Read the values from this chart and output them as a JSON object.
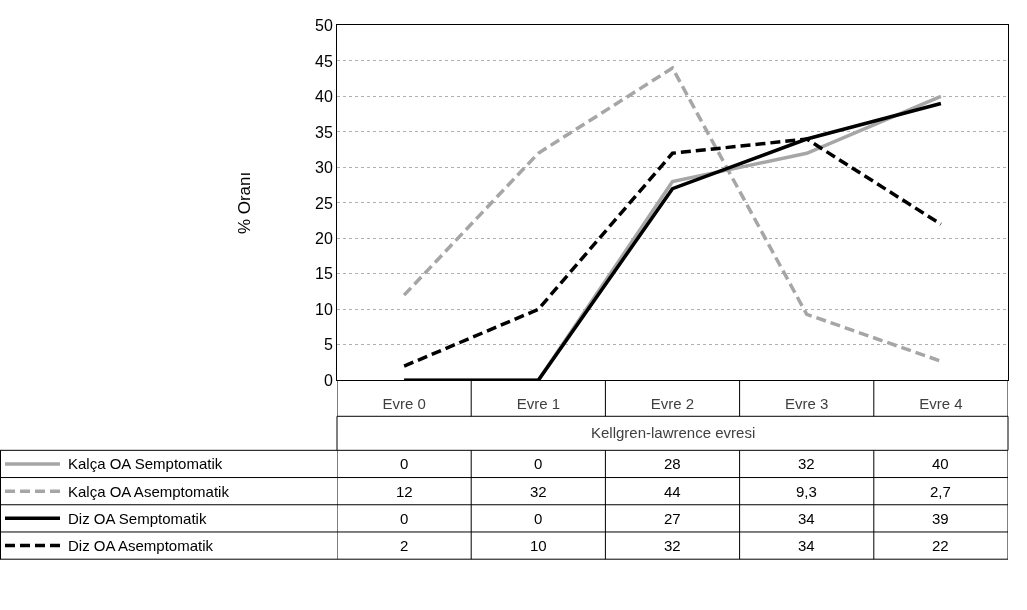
{
  "chart_data": {
    "type": "line",
    "xlabel": "Kellgren-lawrence evresi",
    "ylabel": "% Oranı",
    "categories": [
      "Evre 0",
      "Evre 1",
      "Evre 2",
      "Evre 3",
      "Evre 4"
    ],
    "series": [
      {
        "name": "Kalça OA Semptomatik",
        "color": "#a6a6a6",
        "line_style": "solid",
        "values": [
          0,
          0,
          28,
          32,
          40
        ],
        "value_labels": [
          "0",
          "0",
          "28",
          "32",
          "40"
        ]
      },
      {
        "name": "Kalça OA Asemptomatik",
        "color": "#a6a6a6",
        "line_style": "dashed",
        "values": [
          12,
          32,
          44,
          9.3,
          2.7
        ],
        "value_labels": [
          "12",
          "32",
          "44",
          "9,3",
          "2,7"
        ]
      },
      {
        "name": "Diz OA Semptomatik",
        "color": "#000000",
        "line_style": "solid",
        "values": [
          0,
          0,
          27,
          34,
          39
        ],
        "value_labels": [
          "0",
          "0",
          "27",
          "34",
          "39"
        ]
      },
      {
        "name": "Diz OA Asemptomatik",
        "color": "#000000",
        "line_style": "dashed",
        "values": [
          2,
          10,
          32,
          34,
          22
        ],
        "value_labels": [
          "2",
          "10",
          "32",
          "34",
          "22"
        ]
      }
    ],
    "ylim": [
      0,
      50
    ],
    "yticks": [
      0,
      5,
      10,
      15,
      20,
      25,
      30,
      35,
      40,
      45,
      50
    ],
    "grid": "y",
    "legend": "bottom",
    "marker": "none"
  }
}
